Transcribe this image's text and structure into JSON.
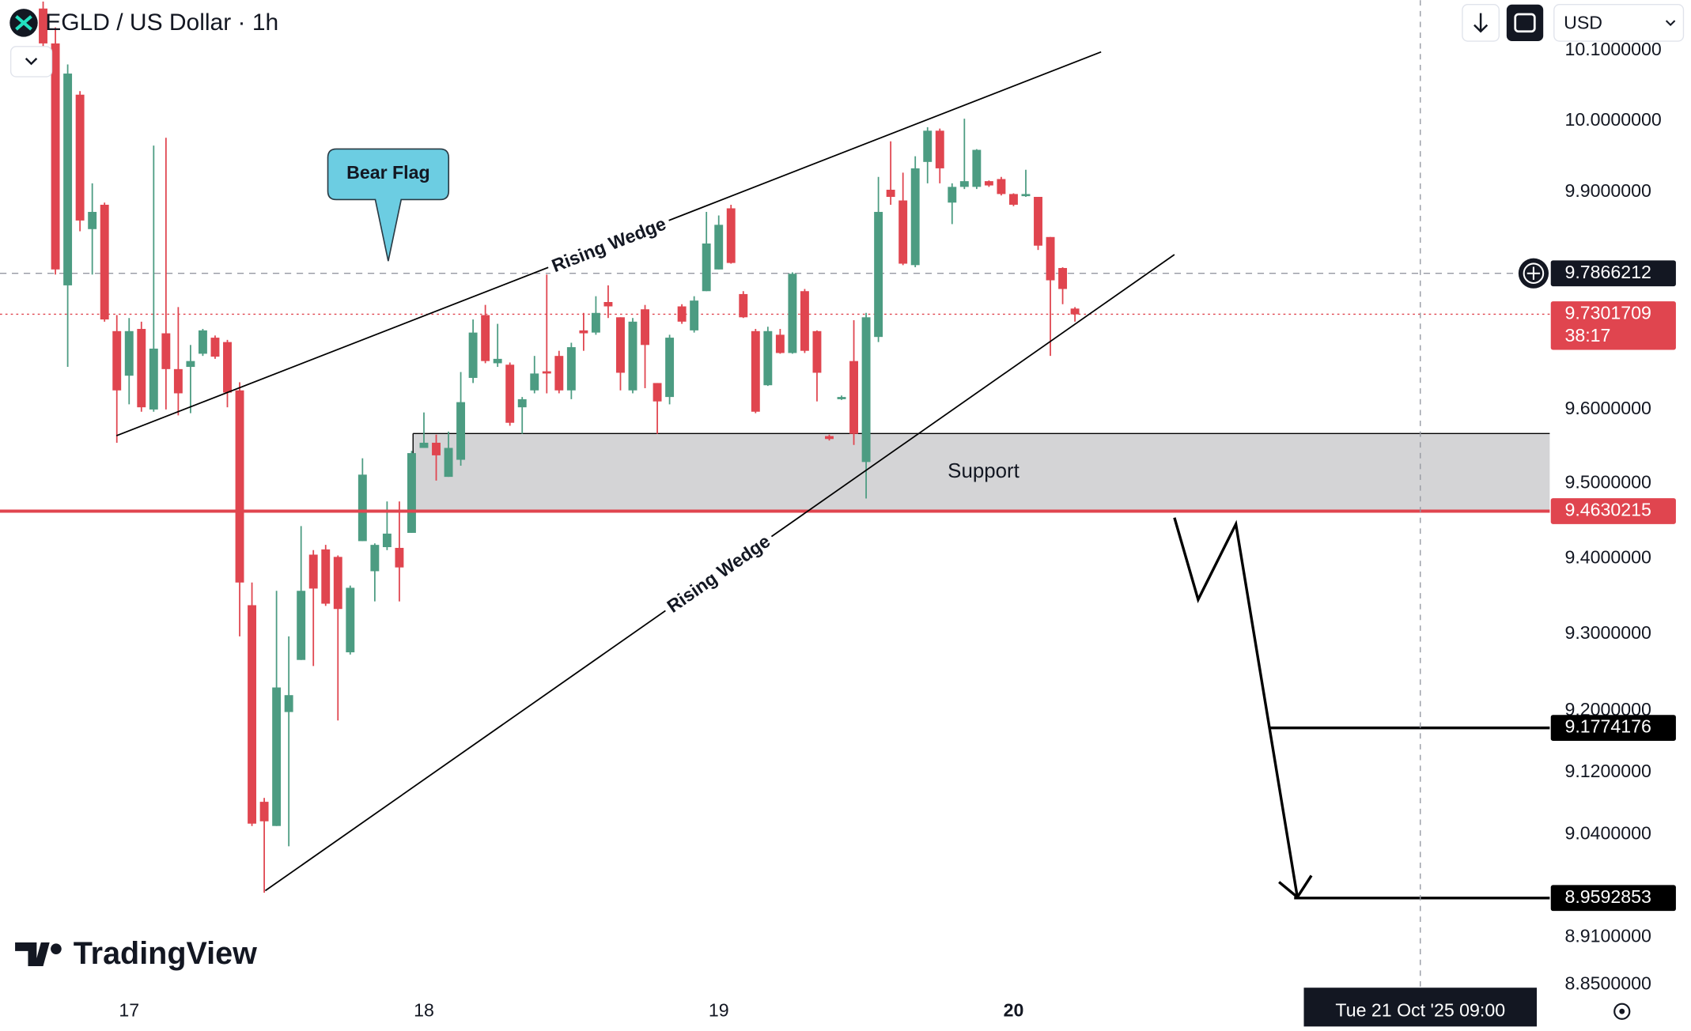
{
  "chart_data": {
    "type": "candlestick",
    "title": "EGLD / US Dollar · 1h",
    "currency": "USD",
    "brand": "TradingView",
    "log_scale": true,
    "grid": false,
    "up_color": "#4c9c82",
    "down_color": "#e0454f",
    "categories": [
      null,
      null,
      null,
      null,
      null,
      null,
      null,
      "17",
      null,
      null,
      null,
      null,
      null,
      null,
      null,
      null,
      null,
      null,
      null,
      null,
      null,
      null,
      null,
      null,
      null,
      null,
      null,
      null,
      null,
      null,
      null,
      "18",
      null,
      null,
      null,
      null,
      null,
      null,
      null,
      null,
      null,
      null,
      null,
      null,
      null,
      null,
      null,
      null,
      null,
      null,
      null,
      null,
      null,
      null,
      null,
      "19",
      null,
      null,
      null,
      null,
      null,
      null,
      null,
      null,
      null,
      null,
      null,
      null,
      null,
      null,
      null,
      null,
      null,
      null,
      null,
      null,
      null,
      null,
      null,
      "20",
      null,
      null,
      null,
      null,
      null
    ],
    "open": [
      10.16,
      10.11,
      9.77,
      10.037,
      9.848,
      9.882,
      9.707,
      9.646,
      9.71,
      9.6,
      9.704,
      9.655,
      9.658,
      9.676,
      9.698,
      9.692,
      9.626,
      9.338,
      9.082,
      9.051,
      9.198,
      9.266,
      9.405,
      9.412,
      9.402,
      9.276,
      9.423,
      9.383,
      9.415,
      9.414,
      9.434,
      9.548,
      9.555,
      9.509,
      9.532,
      9.643,
      9.729,
      9.663,
      9.661,
      9.603,
      9.626,
      9.652,
      9.673,
      9.626,
      9.708,
      9.705,
      9.747,
      9.726,
      9.626,
      9.737,
      9.636,
      9.617,
      9.741,
      9.708,
      9.762,
      9.792,
      9.877,
      9.758,
      9.707,
      9.633,
      9.702,
      9.677,
      9.762,
      9.707,
      9.564,
      9.614,
      9.666,
      9.529,
      9.699,
      9.903,
      9.888,
      9.798,
      9.942,
      9.986,
      9.885,
      9.907,
      9.907,
      9.915,
      9.918,
      9.897,
      9.894,
      9.893,
      9.837,
      9.794,
      9.738
    ],
    "high": [
      10.17,
      10.133,
      10.08,
      10.042,
      9.912,
      9.885,
      9.729,
      9.725,
      9.72,
      9.965,
      9.976,
      9.74,
      9.688,
      9.71,
      9.701,
      9.695,
      9.637,
      9.368,
      9.087,
      9.357,
      9.297,
      9.443,
      9.411,
      9.418,
      9.404,
      9.364,
      9.534,
      9.42,
      9.476,
      9.476,
      9.544,
      9.596,
      9.566,
      9.57,
      9.651,
      9.723,
      9.743,
      9.717,
      9.664,
      9.617,
      9.673,
      9.785,
      9.68,
      9.691,
      9.732,
      9.755,
      9.77,
      9.726,
      9.725,
      9.743,
      9.636,
      9.702,
      9.744,
      9.755,
      9.872,
      9.867,
      9.882,
      9.762,
      9.71,
      9.713,
      9.71,
      9.788,
      9.765,
      9.708,
      9.566,
      9.619,
      9.722,
      9.732,
      9.921,
      9.971,
      9.927,
      9.95,
      9.991,
      9.989,
      9.912,
      10.003,
      9.96,
      9.916,
      9.921,
      9.898,
      9.931,
      9.893,
      9.837,
      9.795,
      9.74
    ],
    "low": [
      10.1,
      9.785,
      9.658,
      9.845,
      9.785,
      9.72,
      9.555,
      9.607,
      9.597,
      9.597,
      9.6,
      9.592,
      9.595,
      9.673,
      9.669,
      9.603,
      9.297,
      9.051,
      8.966,
      9.051,
      9.025,
      9.266,
      9.258,
      9.337,
      9.187,
      9.273,
      9.423,
      9.343,
      9.411,
      9.343,
      9.434,
      9.548,
      9.504,
      9.509,
      9.524,
      9.636,
      9.663,
      9.658,
      9.578,
      9.567,
      9.622,
      9.622,
      9.622,
      9.614,
      9.68,
      9.702,
      9.725,
      9.626,
      9.622,
      9.629,
      9.567,
      9.607,
      9.717,
      9.705,
      9.762,
      9.792,
      9.8,
      9.725,
      9.595,
      9.632,
      9.676,
      9.676,
      9.677,
      9.611,
      9.558,
      9.613,
      9.552,
      9.48,
      9.692,
      9.882,
      9.798,
      9.795,
      9.912,
      9.912,
      9.855,
      9.904,
      9.904,
      9.907,
      9.895,
      9.88,
      9.893,
      9.819,
      9.673,
      9.744,
      9.72
    ],
    "close": [
      10.11,
      9.792,
      10.067,
      9.86,
      9.872,
      9.723,
      9.626,
      9.707,
      9.603,
      9.683,
      9.655,
      9.622,
      9.666,
      9.708,
      9.672,
      9.623,
      9.368,
      9.054,
      9.057,
      9.23,
      9.22,
      9.357,
      9.36,
      9.34,
      9.333,
      9.361,
      9.512,
      9.418,
      9.433,
      9.388,
      9.541,
      9.555,
      9.538,
      9.548,
      9.61,
      9.705,
      9.666,
      9.669,
      9.582,
      9.614,
      9.649,
      9.649,
      9.626,
      9.685,
      9.704,
      9.732,
      9.741,
      9.65,
      9.72,
      9.688,
      9.611,
      9.698,
      9.72,
      9.749,
      9.828,
      9.854,
      9.801,
      9.726,
      9.597,
      9.707,
      9.677,
      9.786,
      9.68,
      9.65,
      9.56,
      9.617,
      9.567,
      9.726,
      9.872,
      9.893,
      9.8,
      9.933,
      9.986,
      9.933,
      9.907,
      9.915,
      9.959,
      9.909,
      9.897,
      9.882,
      9.897,
      9.825,
      9.777,
      9.765,
      9.73
    ],
    "ylim": [
      8.841,
      10.172
    ],
    "yticks": [
      {
        "value": 10.1,
        "label": "10.1000000"
      },
      {
        "value": 10.0,
        "label": "10.0000000"
      },
      {
        "value": 9.9,
        "label": "9.9000000"
      },
      {
        "value": 9.6,
        "label": "9.6000000"
      },
      {
        "value": 9.5,
        "label": "9.5000000"
      },
      {
        "value": 9.4,
        "label": "9.4000000"
      },
      {
        "value": 9.3,
        "label": "9.3000000"
      },
      {
        "value": 9.2,
        "label": "9.2000000"
      },
      {
        "value": 9.12,
        "label": "9.1200000"
      },
      {
        "value": 9.04,
        "label": "9.0400000"
      },
      {
        "value": 8.91,
        "label": "8.9100000"
      },
      {
        "value": 8.85,
        "label": "8.8500000"
      }
    ],
    "marker_price": {
      "value": 9.7866212,
      "color": "#131722"
    },
    "current_price": {
      "value": 9.7301709,
      "countdown": "38:17",
      "color": "#e0454f"
    },
    "breakdown_level": {
      "value": 9.4630215,
      "color": "#e0454f"
    },
    "targets": [
      9.1774176,
      8.9592853
    ],
    "support": {
      "label": "Support",
      "range": [
        9.4630215,
        9.5675
      ],
      "color": "#d4d4d6"
    },
    "annotations": {
      "upper_wedge": "Rising Wedge",
      "lower_wedge": "Rising Wedge",
      "flag": "Bear Flag"
    },
    "crosshair": {
      "label": "Tue 21 Oct '25  09:00"
    }
  }
}
